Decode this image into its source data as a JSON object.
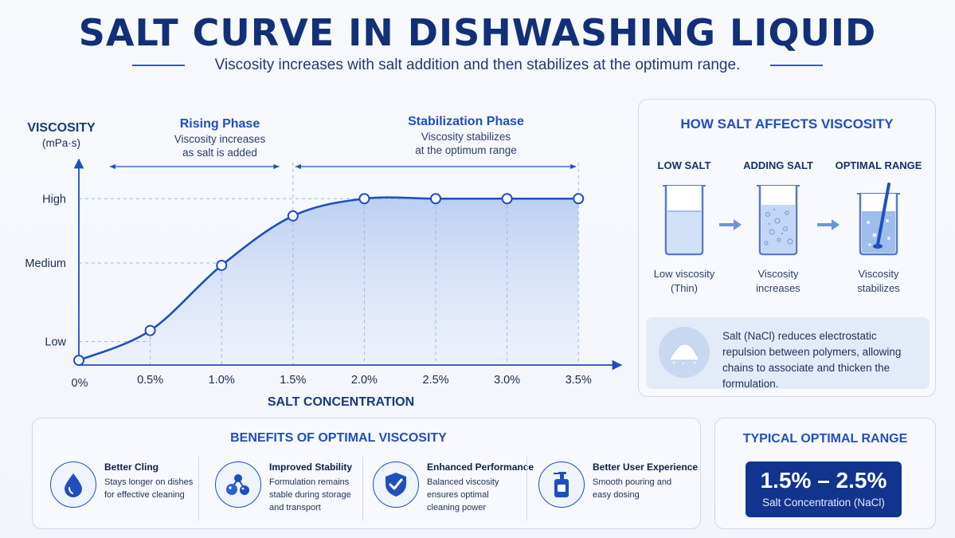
{
  "header": {
    "title": "SALT CURVE IN DISHWASHING LIQUID",
    "subtitle": "Viscosity increases with salt addition and then stabilizes at the optimum range."
  },
  "chart_data": {
    "type": "area",
    "x": [
      0,
      0.5,
      1.0,
      1.5,
      2.0,
      2.5,
      3.0,
      3.5
    ],
    "x_tick_labels": [
      "0%",
      "0.5%",
      "1.0%",
      "1.5%",
      "2.0%",
      "2.5%",
      "3.0%",
      "3.5%"
    ],
    "series": [
      {
        "values": [
          0.06,
          0.44,
          1.27,
          1.9,
          2.12,
          2.12,
          2.12,
          2.12
        ]
      }
    ],
    "y_tick_labels": [
      {
        "label": "Low",
        "value": 0.3
      },
      {
        "label": "Medium",
        "value": 1.3
      },
      {
        "label": "High",
        "value": 2.12
      }
    ],
    "xlim": [
      0,
      3.8
    ],
    "ylim": [
      0,
      2.6
    ],
    "xlabel": "SALT CONCENTRATION",
    "ylabel": "VISCOSITY",
    "ylabel_unit": "(mPa·s)",
    "phases": [
      {
        "title": "Rising Phase",
        "desc": [
          "Viscosity increases",
          "as salt is added"
        ],
        "from": 0.2,
        "to": 1.42
      },
      {
        "title": "Stabilization Phase",
        "desc": [
          "Viscosity stabilizes",
          "at the optimum range"
        ],
        "from": 1.5,
        "to": 3.5
      }
    ],
    "colors": {
      "line": "#1f4fbf",
      "fill": "#c9d8f3",
      "axis": "#1f4fbf",
      "grid": "#9fb5e0"
    }
  },
  "how_salt": {
    "title": "HOW SALT AFFECTS VISCOSITY",
    "stages": [
      {
        "heading": "LOW SALT",
        "caption": [
          "Low viscosity",
          "(Thin)"
        ],
        "icon": "beaker-thin-icon"
      },
      {
        "heading": "ADDING SALT",
        "caption": [
          "Viscosity",
          "increases"
        ],
        "icon": "beaker-bubbles-icon"
      },
      {
        "heading": "OPTIMAL RANGE",
        "caption": [
          "Viscosity",
          "stabilizes"
        ],
        "icon": "beaker-stirred-icon"
      }
    ],
    "explanation": "Salt (NaCl) reduces electrostatic repulsion between polymers, allowing chains to associate and thicken the formulation."
  },
  "benefits": {
    "title": "BENEFITS OF OPTIMAL VISCOSITY",
    "items": [
      {
        "heading": "Better Cling",
        "text": "Stays longer on dishes for effective cleaning",
        "icon": "droplet-icon"
      },
      {
        "heading": "Improved Stability",
        "text": "Formulation remains stable during storage and transport",
        "icon": "molecules-icon"
      },
      {
        "heading": "Enhanced Performance",
        "text": "Balanced viscosity ensures optimal cleaning power",
        "icon": "shield-check-icon"
      },
      {
        "heading": "Better User Experience",
        "text": "Smooth pouring and easy dosing",
        "icon": "pump-bottle-icon"
      }
    ]
  },
  "optimal_range": {
    "title": "TYPICAL OPTIMAL RANGE",
    "value": "1.5% – 2.5%",
    "caption": "Salt Concentration (NaCl)"
  }
}
